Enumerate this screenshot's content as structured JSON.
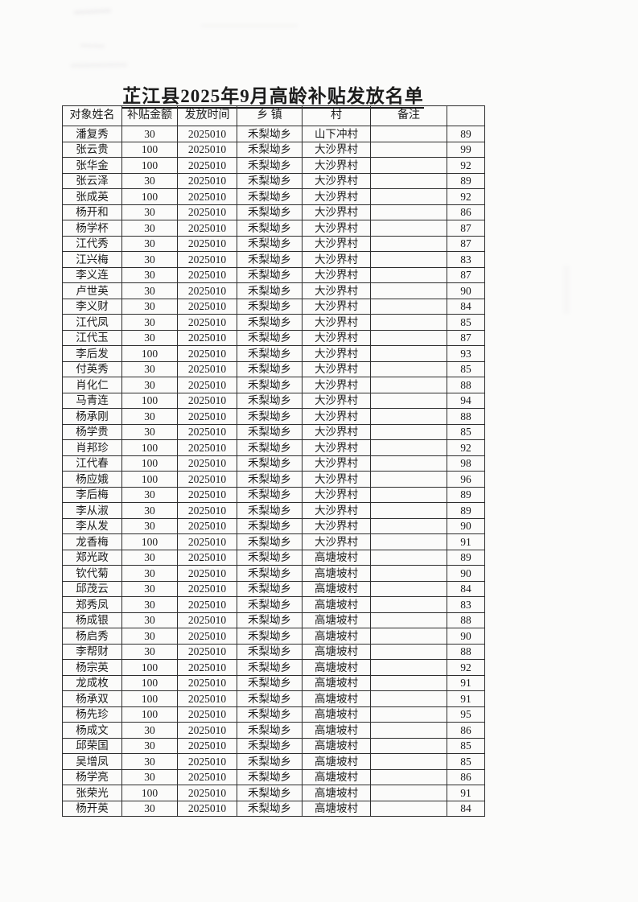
{
  "colors": {
    "paper": "#fbfbfa",
    "ink": "#1c1c1c",
    "table_border": "#2e2e2e"
  },
  "document": {
    "title": "芷江县2025年9月高龄补贴发放名单"
  },
  "table": {
    "columns": [
      "对象姓名",
      "补贴金额",
      "发放时间",
      "乡 镇",
      "村",
      "备注",
      ""
    ],
    "rows": [
      [
        "潘复秀",
        "30",
        "2025010",
        "禾梨坳乡",
        "山下冲村",
        "",
        "89"
      ],
      [
        "张云贵",
        "100",
        "2025010",
        "禾梨坳乡",
        "大沙界村",
        "",
        "99"
      ],
      [
        "张华金",
        "100",
        "2025010",
        "禾梨坳乡",
        "大沙界村",
        "",
        "92"
      ],
      [
        "张云泽",
        "30",
        "2025010",
        "禾梨坳乡",
        "大沙界村",
        "",
        "89"
      ],
      [
        "张成英",
        "100",
        "2025010",
        "禾梨坳乡",
        "大沙界村",
        "",
        "92"
      ],
      [
        "杨开和",
        "30",
        "2025010",
        "禾梨坳乡",
        "大沙界村",
        "",
        "86"
      ],
      [
        "杨学杯",
        "30",
        "2025010",
        "禾梨坳乡",
        "大沙界村",
        "",
        "87"
      ],
      [
        "江代秀",
        "30",
        "2025010",
        "禾梨坳乡",
        "大沙界村",
        "",
        "87"
      ],
      [
        "江兴梅",
        "30",
        "2025010",
        "禾梨坳乡",
        "大沙界村",
        "",
        "83"
      ],
      [
        "李义连",
        "30",
        "2025010",
        "禾梨坳乡",
        "大沙界村",
        "",
        "87"
      ],
      [
        "卢世英",
        "30",
        "2025010",
        "禾梨坳乡",
        "大沙界村",
        "",
        "90"
      ],
      [
        "李义财",
        "30",
        "2025010",
        "禾梨坳乡",
        "大沙界村",
        "",
        "84"
      ],
      [
        "江代凤",
        "30",
        "2025010",
        "禾梨坳乡",
        "大沙界村",
        "",
        "85"
      ],
      [
        "江代玉",
        "30",
        "2025010",
        "禾梨坳乡",
        "大沙界村",
        "",
        "87"
      ],
      [
        "李后发",
        "100",
        "2025010",
        "禾梨坳乡",
        "大沙界村",
        "",
        "93"
      ],
      [
        "付英秀",
        "30",
        "2025010",
        "禾梨坳乡",
        "大沙界村",
        "",
        "85"
      ],
      [
        "肖化仁",
        "30",
        "2025010",
        "禾梨坳乡",
        "大沙界村",
        "",
        "88"
      ],
      [
        "马青连",
        "100",
        "2025010",
        "禾梨坳乡",
        "大沙界村",
        "",
        "94"
      ],
      [
        "杨承刚",
        "30",
        "2025010",
        "禾梨坳乡",
        "大沙界村",
        "",
        "88"
      ],
      [
        "杨学贵",
        "30",
        "2025010",
        "禾梨坳乡",
        "大沙界村",
        "",
        "85"
      ],
      [
        "肖邦珍",
        "100",
        "2025010",
        "禾梨坳乡",
        "大沙界村",
        "",
        "92"
      ],
      [
        "江代春",
        "100",
        "2025010",
        "禾梨坳乡",
        "大沙界村",
        "",
        "98"
      ],
      [
        "杨应娥",
        "100",
        "2025010",
        "禾梨坳乡",
        "大沙界村",
        "",
        "96"
      ],
      [
        "李后梅",
        "30",
        "2025010",
        "禾梨坳乡",
        "大沙界村",
        "",
        "89"
      ],
      [
        "李从淑",
        "30",
        "2025010",
        "禾梨坳乡",
        "大沙界村",
        "",
        "89"
      ],
      [
        "李从发",
        "30",
        "2025010",
        "禾梨坳乡",
        "大沙界村",
        "",
        "90"
      ],
      [
        "龙香梅",
        "100",
        "2025010",
        "禾梨坳乡",
        "大沙界村",
        "",
        "91"
      ],
      [
        "郑光政",
        "30",
        "2025010",
        "禾梨坳乡",
        "高塘坡村",
        "",
        "89"
      ],
      [
        "钦代菊",
        "30",
        "2025010",
        "禾梨坳乡",
        "高塘坡村",
        "",
        "90"
      ],
      [
        "邱茂云",
        "30",
        "2025010",
        "禾梨坳乡",
        "高塘坡村",
        "",
        "84"
      ],
      [
        "郑秀凤",
        "30",
        "2025010",
        "禾梨坳乡",
        "高塘坡村",
        "",
        "83"
      ],
      [
        "杨成银",
        "30",
        "2025010",
        "禾梨坳乡",
        "高塘坡村",
        "",
        "88"
      ],
      [
        "杨启秀",
        "30",
        "2025010",
        "禾梨坳乡",
        "高塘坡村",
        "",
        "90"
      ],
      [
        "李帮财",
        "30",
        "2025010",
        "禾梨坳乡",
        "高塘坡村",
        "",
        "88"
      ],
      [
        "杨宗英",
        "100",
        "2025010",
        "禾梨坳乡",
        "高塘坡村",
        "",
        "92"
      ],
      [
        "龙成枚",
        "100",
        "2025010",
        "禾梨坳乡",
        "高塘坡村",
        "",
        "91"
      ],
      [
        "杨承双",
        "100",
        "2025010",
        "禾梨坳乡",
        "高塘坡村",
        "",
        "91"
      ],
      [
        "杨先珍",
        "100",
        "2025010",
        "禾梨坳乡",
        "高塘坡村",
        "",
        "95"
      ],
      [
        "杨成文",
        "30",
        "2025010",
        "禾梨坳乡",
        "高塘坡村",
        "",
        "86"
      ],
      [
        "邱荣国",
        "30",
        "2025010",
        "禾梨坳乡",
        "高塘坡村",
        "",
        "85"
      ],
      [
        "吴增凤",
        "30",
        "2025010",
        "禾梨坳乡",
        "高塘坡村",
        "",
        "85"
      ],
      [
        "杨学亮",
        "30",
        "2025010",
        "禾梨坳乡",
        "高塘坡村",
        "",
        "86"
      ],
      [
        "张荣光",
        "100",
        "2025010",
        "禾梨坳乡",
        "高塘坡村",
        "",
        "91"
      ],
      [
        "杨开英",
        "30",
        "2025010",
        "禾梨坳乡",
        "高塘坡村",
        "",
        "84"
      ]
    ]
  }
}
